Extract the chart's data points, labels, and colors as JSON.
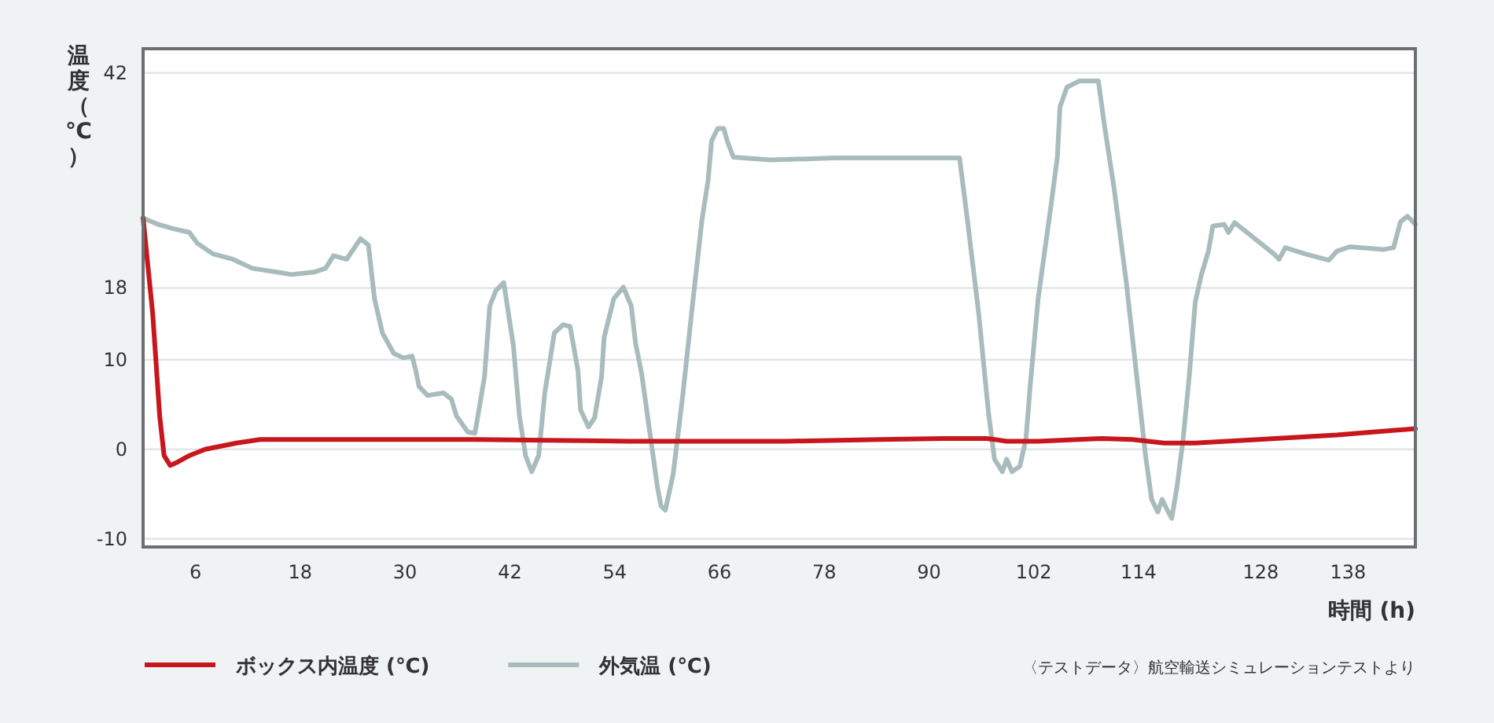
{
  "chart_data": {
    "type": "line",
    "ylabel": "温度（℃）",
    "xlabel": "時間 (h)",
    "annotations": [
      "〈テストデータ〉航空輸送シミュレーションテストより"
    ],
    "xlim": [
      0,
      145.7
    ],
    "xticks": [
      6,
      18,
      30,
      42,
      54,
      66,
      78,
      90,
      102,
      114,
      128,
      138
    ],
    "ylim": [
      -10.9,
      44.7
    ],
    "yticks": [
      -10,
      0,
      10,
      18,
      42
    ],
    "grid": "y",
    "legend": "bottom left",
    "marker": "none",
    "line_style": "solid",
    "series": [
      {
        "name": "ボックス内温度 (℃)",
        "color": "#c8161d",
        "x": [
          0,
          1.1,
          1.9,
          2.4,
          3.1,
          4.0,
          5.3,
          7.1,
          10.7,
          13.4,
          19.7,
          38.0,
          55.7,
          73.7,
          84.5,
          91.7,
          96.6,
          97.5,
          98.9,
          102.5,
          109.7,
          113.3,
          116.9,
          120.5,
          127.7,
          136.7,
          145.7
        ],
        "values": [
          25.8,
          15.1,
          3.7,
          -0.7,
          -1.8,
          -1.4,
          -0.7,
          0,
          0.7,
          1.1,
          1.1,
          1.1,
          0.9,
          0.9,
          1.1,
          1.2,
          1.2,
          1.1,
          0.9,
          0.9,
          1.2,
          1.1,
          0.7,
          0.7,
          1.1,
          1.6,
          2.3
        ]
      },
      {
        "name": "外気温 (℃)",
        "color": "#a9bcbd",
        "x": [
          0,
          1.7,
          3.5,
          5.3,
          6.2,
          8.0,
          10.3,
          12.5,
          15.2,
          17.0,
          17.9,
          19.7,
          20.9,
          21.8,
          23.3,
          24.9,
          25.8,
          26.5,
          27.4,
          28.7,
          29.8,
          30.8,
          31.2,
          31.6,
          32.6,
          34.4,
          35.3,
          35.9,
          37.2,
          38.0,
          39.1,
          39.7,
          40.4,
          41.3,
          42.4,
          43.1,
          43.8,
          44.5,
          45.3,
          46.0,
          47.1,
          48.1,
          48.9,
          49.8,
          50.1,
          51.0,
          51.7,
          52.5,
          52.8,
          53.9,
          55.0,
          55.9,
          56.4,
          57.1,
          57.9,
          58.9,
          59.3,
          59.8,
          60.7,
          61.8,
          62.9,
          64.0,
          64.7,
          65.1,
          65.8,
          66.5,
          66.9,
          67.6,
          71.9,
          79.1,
          93.5,
          94.4,
          95.7,
          96.8,
          97.5,
          98.4,
          98.9,
          99.5,
          100.4,
          101.1,
          101.6,
          102.5,
          104.0,
          104.7,
          105.0,
          105.8,
          107.2,
          109.4,
          110.1,
          111.2,
          112.6,
          114.0,
          114.8,
          115.5,
          116.2,
          116.7,
          117.3,
          117.8,
          118.4,
          119.1,
          119.8,
          120.5,
          121.2,
          122.0,
          122.5,
          123.8,
          124.3,
          125.0,
          126.8,
          129.5,
          130.1,
          130.8,
          133.1,
          135.8,
          136.7,
          138.2,
          142.1,
          143.2,
          144.0,
          144.8,
          145.7
        ],
        "values": [
          25.8,
          25.1,
          24.6,
          24.2,
          23.0,
          21.8,
          21.2,
          20.2,
          19.8,
          19.5,
          19.6,
          19.8,
          20.2,
          21.6,
          21.2,
          23.5,
          22.8,
          16.8,
          13.0,
          10.7,
          10.2,
          10.4,
          8.9,
          7.0,
          6.0,
          6.3,
          5.6,
          3.7,
          1.9,
          1.8,
          8.1,
          16.0,
          17.7,
          18.6,
          11.6,
          3.7,
          -0.7,
          -2.5,
          -0.7,
          6.3,
          13.0,
          13.9,
          13.7,
          8.8,
          4.4,
          2.5,
          3.5,
          8.1,
          12.5,
          16.8,
          18.1,
          16.0,
          11.8,
          8.4,
          2.8,
          -4.2,
          -6.3,
          -6.8,
          -2.8,
          6.0,
          16.0,
          25.6,
          30.0,
          34.4,
          35.8,
          35.8,
          34.4,
          32.6,
          32.3,
          32.5,
          32.5,
          25.6,
          15.1,
          4.2,
          -1.1,
          -2.5,
          -1.1,
          -2.5,
          -1.9,
          1.1,
          7.2,
          16.8,
          27.4,
          32.6,
          38.2,
          40.4,
          41.1,
          41.1,
          36.1,
          29.1,
          18.6,
          6.3,
          -0.7,
          -5.6,
          -7.0,
          -5.6,
          -6.8,
          -7.7,
          -4.2,
          1.1,
          8.1,
          16.5,
          19.5,
          22.1,
          24.9,
          25.1,
          24.2,
          25.3,
          23.9,
          21.8,
          21.2,
          22.5,
          21.8,
          21.1,
          22.1,
          22.6,
          22.3,
          22.5,
          25.4,
          26.0,
          25.1
        ]
      }
    ]
  }
}
